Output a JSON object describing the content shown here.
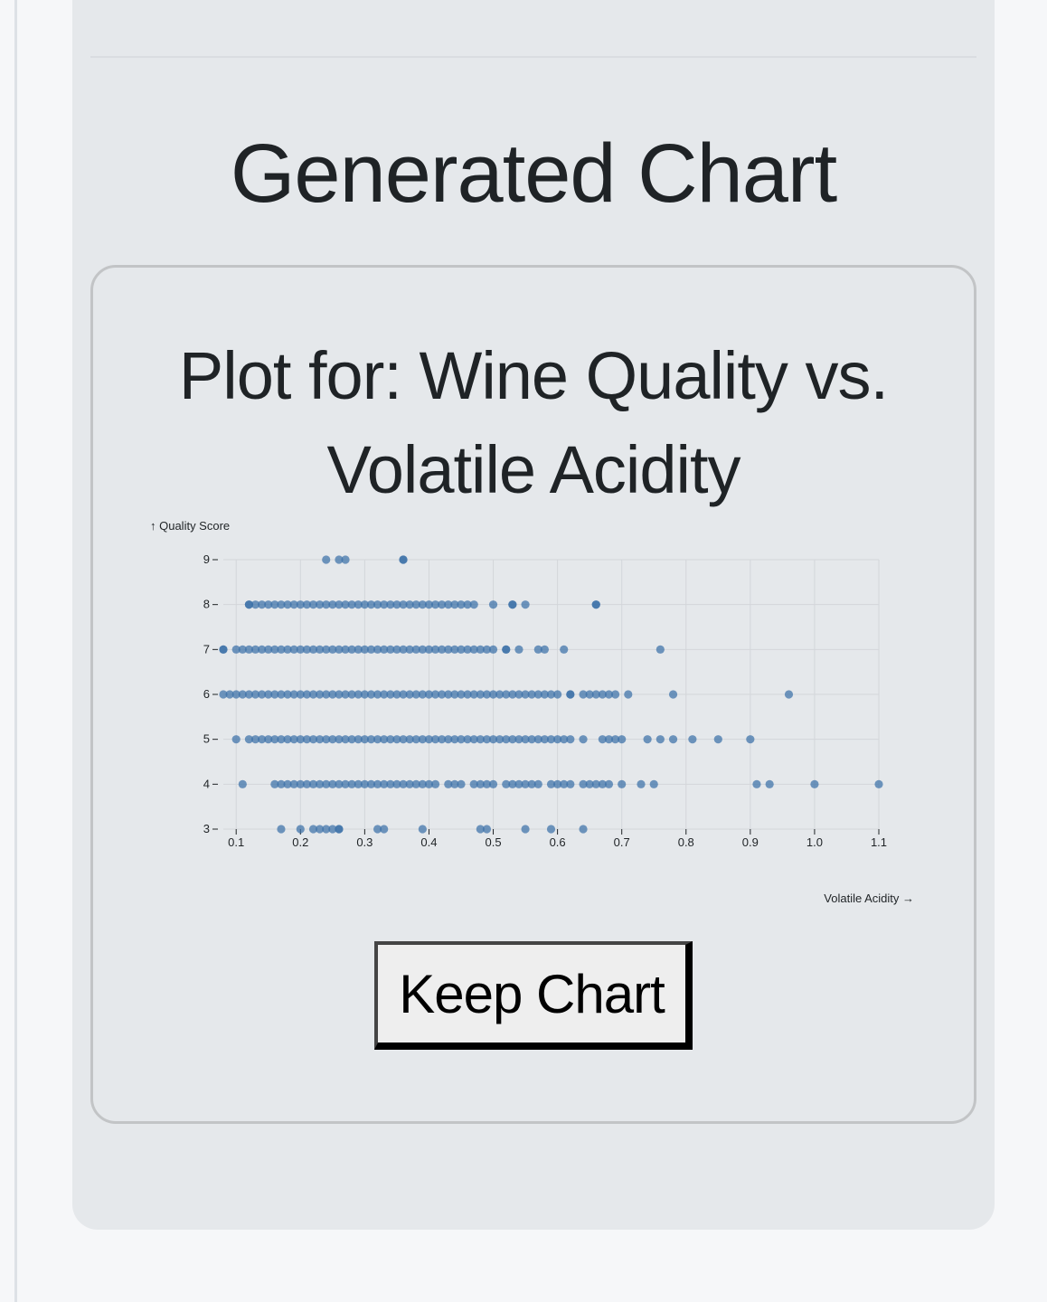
{
  "section": {
    "title": "Generated Chart"
  },
  "chart_card": {
    "title": "Plot for: Wine Quality vs. Volatile Acidity",
    "keep_button_label": "Keep Chart"
  },
  "colors": {
    "point": "#3b70a8",
    "grid": "#d3d6da",
    "text": "#1f2326"
  },
  "chart_data": {
    "type": "scatter",
    "xlabel": "Volatile Acidity →",
    "ylabel": "↑ Quality Score",
    "xlim": [
      0.08,
      1.1
    ],
    "ylim": [
      3,
      9
    ],
    "x_ticks": [
      "0.1",
      "0.2",
      "0.3",
      "0.4",
      "0.5",
      "0.6",
      "0.7",
      "0.8",
      "0.9",
      "1.0",
      "1.1"
    ],
    "y_ticks": [
      "3",
      "4",
      "5",
      "6",
      "7",
      "8",
      "9"
    ],
    "grid": true,
    "series": [
      {
        "quality": 9,
        "x": [
          0.24,
          0.26,
          0.27,
          0.36,
          0.36
        ]
      },
      {
        "quality": 8,
        "x": [
          0.12,
          0.12,
          0.13,
          0.14,
          0.15,
          0.16,
          0.17,
          0.18,
          0.19,
          0.2,
          0.21,
          0.22,
          0.23,
          0.24,
          0.25,
          0.26,
          0.27,
          0.28,
          0.29,
          0.3,
          0.31,
          0.32,
          0.33,
          0.34,
          0.35,
          0.36,
          0.37,
          0.38,
          0.39,
          0.4,
          0.41,
          0.42,
          0.43,
          0.44,
          0.45,
          0.46,
          0.47,
          0.5,
          0.53,
          0.53,
          0.55,
          0.66,
          0.66
        ]
      },
      {
        "quality": 7,
        "x": [
          0.08,
          0.08,
          0.1,
          0.11,
          0.12,
          0.13,
          0.14,
          0.15,
          0.16,
          0.17,
          0.18,
          0.19,
          0.2,
          0.21,
          0.22,
          0.23,
          0.24,
          0.25,
          0.26,
          0.27,
          0.28,
          0.29,
          0.3,
          0.31,
          0.32,
          0.33,
          0.34,
          0.35,
          0.36,
          0.37,
          0.38,
          0.39,
          0.4,
          0.41,
          0.42,
          0.43,
          0.44,
          0.45,
          0.46,
          0.47,
          0.48,
          0.49,
          0.5,
          0.52,
          0.52,
          0.54,
          0.57,
          0.58,
          0.61,
          0.76
        ]
      },
      {
        "quality": 6,
        "x": [
          0.08,
          0.09,
          0.1,
          0.11,
          0.12,
          0.13,
          0.14,
          0.15,
          0.16,
          0.17,
          0.18,
          0.19,
          0.2,
          0.21,
          0.22,
          0.23,
          0.24,
          0.25,
          0.26,
          0.27,
          0.28,
          0.29,
          0.3,
          0.31,
          0.32,
          0.33,
          0.34,
          0.35,
          0.36,
          0.37,
          0.38,
          0.39,
          0.4,
          0.41,
          0.42,
          0.43,
          0.44,
          0.45,
          0.46,
          0.47,
          0.48,
          0.49,
          0.5,
          0.51,
          0.52,
          0.53,
          0.54,
          0.55,
          0.56,
          0.57,
          0.58,
          0.59,
          0.6,
          0.62,
          0.62,
          0.64,
          0.65,
          0.66,
          0.67,
          0.68,
          0.69,
          0.71,
          0.78,
          0.96
        ]
      },
      {
        "quality": 5,
        "x": [
          0.1,
          0.12,
          0.13,
          0.14,
          0.15,
          0.16,
          0.17,
          0.18,
          0.19,
          0.2,
          0.21,
          0.22,
          0.23,
          0.24,
          0.25,
          0.26,
          0.27,
          0.28,
          0.29,
          0.3,
          0.31,
          0.32,
          0.33,
          0.34,
          0.35,
          0.36,
          0.37,
          0.38,
          0.39,
          0.4,
          0.41,
          0.42,
          0.43,
          0.44,
          0.45,
          0.46,
          0.47,
          0.48,
          0.49,
          0.5,
          0.51,
          0.52,
          0.53,
          0.54,
          0.55,
          0.56,
          0.57,
          0.58,
          0.59,
          0.6,
          0.61,
          0.62,
          0.64,
          0.67,
          0.68,
          0.69,
          0.7,
          0.74,
          0.76,
          0.78,
          0.81,
          0.85,
          0.9
        ]
      },
      {
        "quality": 4,
        "x": [
          0.11,
          0.16,
          0.17,
          0.18,
          0.19,
          0.2,
          0.21,
          0.22,
          0.23,
          0.24,
          0.25,
          0.26,
          0.27,
          0.28,
          0.29,
          0.3,
          0.31,
          0.32,
          0.33,
          0.34,
          0.35,
          0.36,
          0.37,
          0.38,
          0.39,
          0.4,
          0.41,
          0.43,
          0.44,
          0.45,
          0.47,
          0.48,
          0.49,
          0.5,
          0.52,
          0.53,
          0.54,
          0.55,
          0.56,
          0.57,
          0.59,
          0.6,
          0.61,
          0.62,
          0.64,
          0.65,
          0.66,
          0.67,
          0.68,
          0.7,
          0.73,
          0.75,
          0.91,
          0.93,
          1.0,
          1.1
        ]
      },
      {
        "quality": 3,
        "x": [
          0.17,
          0.2,
          0.22,
          0.23,
          0.24,
          0.25,
          0.26,
          0.26,
          0.32,
          0.33,
          0.39,
          0.48,
          0.49,
          0.55,
          0.59,
          0.64
        ]
      }
    ]
  }
}
